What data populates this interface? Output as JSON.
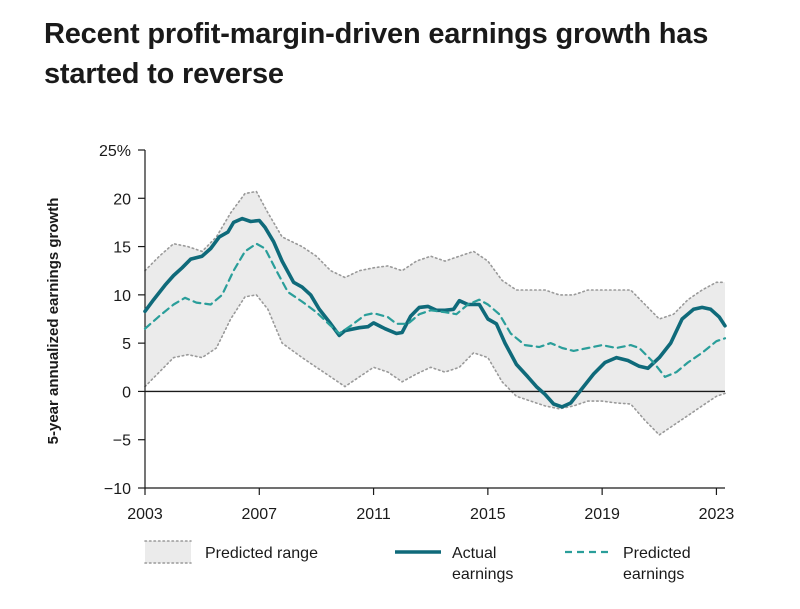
{
  "title": "Recent profit-margin-driven earnings growth has started to reverse",
  "chart_data": {
    "type": "line",
    "title": "Recent profit-margin-driven earnings growth has started to reverse",
    "xlabel": "",
    "ylabel": "5-year annualized earnings growth",
    "xlim": [
      2003,
      2023.3
    ],
    "ylim": [
      -10,
      25
    ],
    "x_ticks": [
      2003,
      2007,
      2011,
      2015,
      2019,
      2023
    ],
    "x_tick_labels": [
      "2003",
      "2007",
      "2011",
      "2015",
      "2019",
      "2023"
    ],
    "y_ticks": [
      25,
      20,
      15,
      10,
      5,
      0,
      -5,
      -10
    ],
    "y_tick_labels": [
      "25%",
      "20",
      "15",
      "10",
      "5",
      "0",
      "−5",
      "−10"
    ],
    "zero_line": true,
    "legend_position": "bottom",
    "colors": {
      "actual": "#0f6a7a",
      "predicted": "#2a9e9a",
      "band_fill": "#ebebeb",
      "band_edge": "#9a9a9a",
      "axis": "#1a1a1a"
    },
    "legend": [
      {
        "key": "band",
        "label": [
          "Predicted range"
        ]
      },
      {
        "key": "actual",
        "label": [
          "Actual",
          "earnings"
        ]
      },
      {
        "key": "predicted",
        "label": [
          "Predicted",
          "earnings"
        ]
      }
    ],
    "predicted_range": {
      "name": "Predicted range",
      "upper": [
        [
          2003,
          12.5
        ],
        [
          2003.5,
          14
        ],
        [
          2004,
          15.3
        ],
        [
          2004.5,
          15
        ],
        [
          2005,
          14.5
        ],
        [
          2005.5,
          16
        ],
        [
          2006,
          18.5
        ],
        [
          2006.5,
          20.5
        ],
        [
          2006.9,
          20.7
        ],
        [
          2007.3,
          18.5
        ],
        [
          2007.8,
          16
        ],
        [
          2008.5,
          15
        ],
        [
          2009,
          14
        ],
        [
          2009.5,
          12.5
        ],
        [
          2010,
          11.8
        ],
        [
          2010.5,
          12.5
        ],
        [
          2011,
          12.8
        ],
        [
          2011.5,
          13
        ],
        [
          2012,
          12.5
        ],
        [
          2012.5,
          13.5
        ],
        [
          2013,
          14
        ],
        [
          2013.5,
          13.5
        ],
        [
          2014,
          14
        ],
        [
          2014.5,
          14.5
        ],
        [
          2015,
          13.5
        ],
        [
          2015.5,
          11.5
        ],
        [
          2016,
          10.5
        ],
        [
          2016.5,
          10.5
        ],
        [
          2017,
          10.5
        ],
        [
          2017.5,
          10
        ],
        [
          2018,
          10
        ],
        [
          2018.5,
          10.5
        ],
        [
          2019,
          10.5
        ],
        [
          2019.5,
          10.5
        ],
        [
          2020,
          10.5
        ],
        [
          2020.5,
          9
        ],
        [
          2021,
          7.5
        ],
        [
          2021.5,
          8
        ],
        [
          2022,
          9.5
        ],
        [
          2022.5,
          10.5
        ],
        [
          2023,
          11.3
        ],
        [
          2023.3,
          11.3
        ]
      ],
      "lower": [
        [
          2003,
          0.5
        ],
        [
          2003.5,
          2
        ],
        [
          2004,
          3.5
        ],
        [
          2004.5,
          3.8
        ],
        [
          2005,
          3.5
        ],
        [
          2005.5,
          4.5
        ],
        [
          2006,
          7.5
        ],
        [
          2006.5,
          9.8
        ],
        [
          2006.9,
          10
        ],
        [
          2007.3,
          8.5
        ],
        [
          2007.8,
          5
        ],
        [
          2008.5,
          3.5
        ],
        [
          2009,
          2.5
        ],
        [
          2009.5,
          1.5
        ],
        [
          2010,
          0.5
        ],
        [
          2010.5,
          1.5
        ],
        [
          2011,
          2.5
        ],
        [
          2011.5,
          2
        ],
        [
          2012,
          1
        ],
        [
          2012.5,
          1.8
        ],
        [
          2013,
          2.5
        ],
        [
          2013.5,
          2
        ],
        [
          2014,
          2.5
        ],
        [
          2014.5,
          4
        ],
        [
          2015,
          3.5
        ],
        [
          2015.5,
          1
        ],
        [
          2016,
          -0.5
        ],
        [
          2016.5,
          -1
        ],
        [
          2017,
          -1.5
        ],
        [
          2017.5,
          -1.8
        ],
        [
          2018,
          -1.5
        ],
        [
          2018.5,
          -1
        ],
        [
          2019,
          -1
        ],
        [
          2019.5,
          -1.2
        ],
        [
          2020,
          -1.3
        ],
        [
          2020.5,
          -3
        ],
        [
          2021,
          -4.5
        ],
        [
          2021.5,
          -3.5
        ],
        [
          2022,
          -2.5
        ],
        [
          2022.5,
          -1.5
        ],
        [
          2023,
          -0.5
        ],
        [
          2023.3,
          -0.2
        ]
      ]
    },
    "series": [
      {
        "name": "Actual earnings",
        "style": "solid",
        "points": [
          [
            2003,
            8.3
          ],
          [
            2003.3,
            9.5
          ],
          [
            2003.7,
            11
          ],
          [
            2004,
            12
          ],
          [
            2004.3,
            12.8
          ],
          [
            2004.6,
            13.7
          ],
          [
            2005,
            14
          ],
          [
            2005.3,
            14.8
          ],
          [
            2005.6,
            16
          ],
          [
            2005.9,
            16.5
          ],
          [
            2006.1,
            17.5
          ],
          [
            2006.4,
            17.9
          ],
          [
            2006.7,
            17.6
          ],
          [
            2007,
            17.7
          ],
          [
            2007.2,
            17
          ],
          [
            2007.5,
            15.5
          ],
          [
            2007.8,
            13.5
          ],
          [
            2008.2,
            11.3
          ],
          [
            2008.5,
            10.8
          ],
          [
            2008.8,
            10
          ],
          [
            2009.1,
            8.5
          ],
          [
            2009.5,
            7
          ],
          [
            2009.8,
            5.8
          ],
          [
            2010,
            6.3
          ],
          [
            2010.5,
            6.6
          ],
          [
            2010.8,
            6.7
          ],
          [
            2011,
            7.1
          ],
          [
            2011.4,
            6.5
          ],
          [
            2011.8,
            6
          ],
          [
            2012,
            6.1
          ],
          [
            2012.3,
            7.8
          ],
          [
            2012.6,
            8.7
          ],
          [
            2012.9,
            8.8
          ],
          [
            2013.2,
            8.4
          ],
          [
            2013.5,
            8.4
          ],
          [
            2013.8,
            8.5
          ],
          [
            2014,
            9.4
          ],
          [
            2014.3,
            9
          ],
          [
            2014.7,
            9
          ],
          [
            2015,
            7.5
          ],
          [
            2015.3,
            7
          ],
          [
            2015.6,
            5
          ],
          [
            2016,
            2.8
          ],
          [
            2016.4,
            1.5
          ],
          [
            2016.7,
            0.5
          ],
          [
            2017,
            -0.3
          ],
          [
            2017.3,
            -1.3
          ],
          [
            2017.6,
            -1.6
          ],
          [
            2017.9,
            -1.2
          ],
          [
            2018.3,
            0.3
          ],
          [
            2018.7,
            1.8
          ],
          [
            2019.1,
            3
          ],
          [
            2019.5,
            3.5
          ],
          [
            2019.9,
            3.2
          ],
          [
            2020.3,
            2.6
          ],
          [
            2020.6,
            2.4
          ],
          [
            2021,
            3.5
          ],
          [
            2021.4,
            5
          ],
          [
            2021.8,
            7.5
          ],
          [
            2022.2,
            8.5
          ],
          [
            2022.5,
            8.7
          ],
          [
            2022.8,
            8.5
          ],
          [
            2023.1,
            7.7
          ],
          [
            2023.3,
            6.8
          ]
        ]
      },
      {
        "name": "Predicted earnings",
        "style": "dashed",
        "points": [
          [
            2003,
            6.5
          ],
          [
            2003.5,
            7.8
          ],
          [
            2004,
            9
          ],
          [
            2004.4,
            9.7
          ],
          [
            2004.8,
            9.2
          ],
          [
            2005.3,
            9
          ],
          [
            2005.7,
            10
          ],
          [
            2006.1,
            12.5
          ],
          [
            2006.5,
            14.5
          ],
          [
            2006.9,
            15.3
          ],
          [
            2007.2,
            14.8
          ],
          [
            2007.6,
            12.5
          ],
          [
            2008,
            10.3
          ],
          [
            2008.5,
            9.3
          ],
          [
            2009,
            8.2
          ],
          [
            2009.5,
            6.8
          ],
          [
            2009.8,
            6
          ],
          [
            2010.2,
            6.8
          ],
          [
            2010.7,
            7.9
          ],
          [
            2011,
            8.1
          ],
          [
            2011.5,
            7.7
          ],
          [
            2011.8,
            7
          ],
          [
            2012.2,
            7
          ],
          [
            2012.6,
            8
          ],
          [
            2013,
            8.4
          ],
          [
            2013.5,
            8.2
          ],
          [
            2013.9,
            8
          ],
          [
            2014.3,
            9
          ],
          [
            2014.7,
            9.5
          ],
          [
            2015,
            9
          ],
          [
            2015.4,
            8
          ],
          [
            2015.8,
            6
          ],
          [
            2016.3,
            4.8
          ],
          [
            2016.8,
            4.6
          ],
          [
            2017.2,
            5
          ],
          [
            2017.6,
            4.5
          ],
          [
            2018,
            4.2
          ],
          [
            2018.5,
            4.5
          ],
          [
            2019,
            4.8
          ],
          [
            2019.5,
            4.5
          ],
          [
            2020,
            4.8
          ],
          [
            2020.3,
            4.5
          ],
          [
            2020.8,
            3
          ],
          [
            2021.2,
            1.5
          ],
          [
            2021.6,
            2
          ],
          [
            2022,
            3
          ],
          [
            2022.5,
            4
          ],
          [
            2023,
            5.2
          ],
          [
            2023.3,
            5.5
          ]
        ]
      }
    ]
  }
}
